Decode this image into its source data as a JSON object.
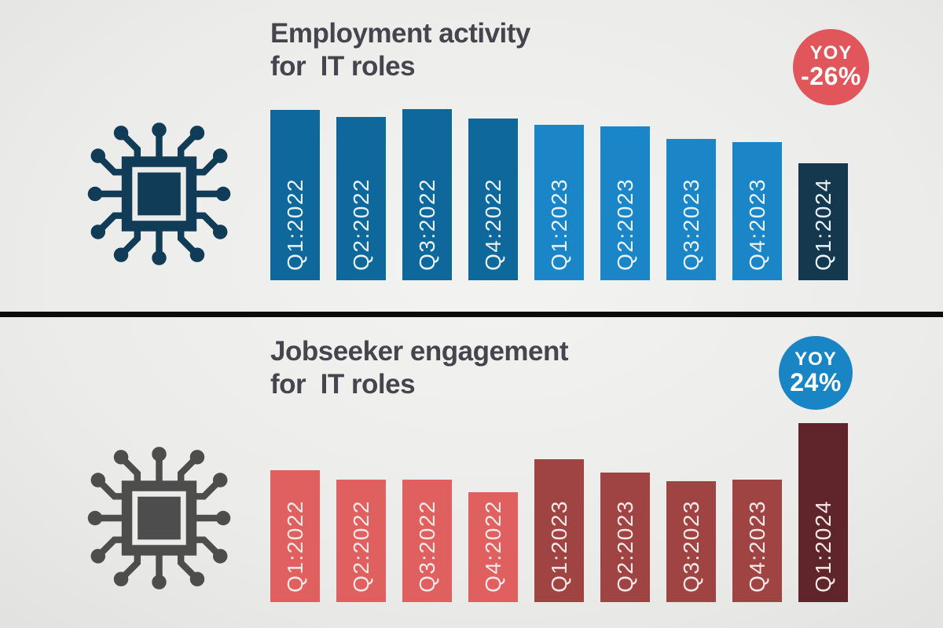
{
  "background_color": "#ebebe9",
  "divider_color": "#0c0c0c",
  "title_color": "#46454d",
  "chart_data": [
    {
      "type": "bar",
      "title": "Employment activity for IT roles",
      "title_lines": [
        "Employment activity",
        "for  IT roles"
      ],
      "categories": [
        "Q1:2022",
        "Q2:2022",
        "Q3:2022",
        "Q4:2022",
        "Q1:2023",
        "Q2:2023",
        "Q3:2023",
        "Q4:2023",
        "Q1:2024"
      ],
      "values": [
        217,
        208,
        218,
        206,
        198,
        196,
        180,
        176,
        149
      ],
      "value_note": "no numeric axis shown; values are relative bar heights in px estimated from the image",
      "ylim": [
        0,
        230
      ],
      "axis": "none",
      "grid": false,
      "legend": "none",
      "bar_colors": [
        "#0f689c",
        "#0f689c",
        "#0f689c",
        "#0f689c",
        "#1b86c7",
        "#1b86c7",
        "#1b86c7",
        "#1b86c7",
        "#14384e"
      ],
      "label_color": "#e9f2f9",
      "badge": {
        "label": "YOY",
        "value": "-26%",
        "bg_color": "#e0565b",
        "text_color": "#ffffff"
      },
      "icon": "microchip-icon",
      "icon_color": "#113c57"
    },
    {
      "type": "bar",
      "title": "Jobseeker engagement for IT roles",
      "title_lines": [
        "Jobseeker engagement",
        "for  IT roles"
      ],
      "categories": [
        "Q1:2022",
        "Q2:2022",
        "Q3:2022",
        "Q4:2022",
        "Q1:2023",
        "Q2:2023",
        "Q3:2023",
        "Q4:2023",
        "Q1:2024"
      ],
      "values": [
        168,
        156,
        156,
        140,
        182,
        165,
        154,
        156,
        228
      ],
      "value_note": "no numeric axis shown; values are relative bar heights in px estimated from the image",
      "ylim": [
        0,
        230
      ],
      "axis": "none",
      "grid": false,
      "legend": "none",
      "bar_colors": [
        "#e05f5f",
        "#e05f5f",
        "#e05f5f",
        "#e05f5f",
        "#a04343",
        "#a04343",
        "#a04343",
        "#a04343",
        "#60252a"
      ],
      "label_color": "#f7e8e8",
      "badge": {
        "label": "YOY",
        "value": "24%",
        "bg_color": "#1a85c4",
        "text_color": "#ffffff"
      },
      "icon": "microchip-icon",
      "icon_color": "#4d4d4d"
    }
  ]
}
